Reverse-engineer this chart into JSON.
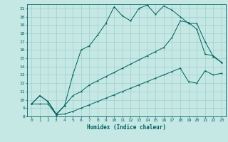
{
  "title": "",
  "xlabel": "Humidex (Indice chaleur)",
  "xlim": [
    -0.5,
    23.5
  ],
  "ylim": [
    8,
    21.5
  ],
  "yticks": [
    8,
    9,
    10,
    11,
    12,
    13,
    14,
    15,
    16,
    17,
    18,
    19,
    20,
    21
  ],
  "xticks": [
    0,
    1,
    2,
    3,
    4,
    5,
    6,
    7,
    8,
    9,
    10,
    11,
    12,
    13,
    14,
    15,
    16,
    17,
    18,
    19,
    20,
    21,
    22,
    23
  ],
  "bg_color": "#c5e8e5",
  "grid_color": "#9ecfcc",
  "line_color": "#005f5f",
  "line1_x": [
    0,
    1,
    2,
    3,
    4,
    5,
    6,
    7,
    8,
    9,
    10,
    11,
    12,
    13,
    14,
    15,
    16,
    17,
    18,
    19,
    20,
    21,
    22,
    23
  ],
  "line1_y": [
    9.5,
    10.5,
    9.8,
    8.2,
    9.3,
    13.0,
    16.0,
    16.5,
    17.8,
    19.2,
    21.2,
    20.1,
    19.5,
    21.0,
    21.4,
    20.3,
    21.3,
    20.8,
    20.0,
    19.2,
    19.2,
    17.0,
    15.2,
    14.5
  ],
  "line2_x": [
    0,
    1,
    2,
    3,
    4,
    5,
    6,
    7,
    8,
    9,
    10,
    11,
    12,
    13,
    14,
    15,
    16,
    17,
    18,
    19,
    20,
    21,
    22,
    23
  ],
  "line2_y": [
    9.5,
    10.5,
    9.8,
    8.3,
    9.3,
    10.5,
    11.0,
    11.8,
    12.3,
    12.8,
    13.3,
    13.8,
    14.3,
    14.8,
    15.3,
    15.8,
    16.3,
    17.5,
    19.5,
    19.3,
    18.5,
    15.5,
    15.3,
    14.5
  ],
  "line3_x": [
    0,
    1,
    2,
    3,
    4,
    5,
    6,
    7,
    8,
    9,
    10,
    11,
    12,
    13,
    14,
    15,
    16,
    17,
    18,
    19,
    20,
    21,
    22,
    23
  ],
  "line3_y": [
    9.5,
    9.5,
    9.5,
    8.2,
    8.3,
    8.6,
    9.0,
    9.4,
    9.8,
    10.2,
    10.6,
    11.0,
    11.4,
    11.8,
    12.2,
    12.6,
    13.0,
    13.4,
    13.8,
    12.2,
    12.0,
    13.5,
    13.0,
    13.2
  ]
}
